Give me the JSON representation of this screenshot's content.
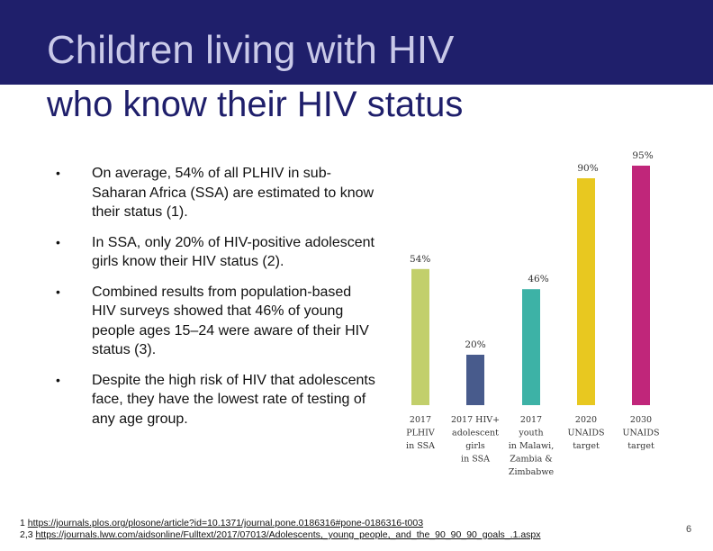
{
  "slide": {
    "title": "Children living with HIV",
    "subtitle": "who know their HIV status",
    "page_number": "6"
  },
  "bullets": [
    "On average, 54% of all PLHIV in sub-Saharan Africa (SSA) are estimated to know their status (1).",
    "In SSA, only 20% of HIV-positive adolescent girls know their HIV status (2).",
    "Combined results from population-based HIV surveys showed that 46% of young people ages 15–24 were aware of their HIV status (3).",
    "Despite the high risk of HIV that adolescents face, they have the lowest rate of testing of any age group."
  ],
  "footer": {
    "ref1_prefix": "1 ",
    "ref1_link": "https://journals.plos.org/plosone/article?id=10.1371/journal.pone.0186316#pone-0186316-t003",
    "ref2_prefix": "2,3  ",
    "ref2_link": "https://journals.lww.com/aidsonline/Fulltext/2017/07013/Adolescents,_young_people,_and_the_90_90_90_goals_.1.aspx"
  },
  "colors": {
    "header": "#1f1f6b",
    "title_text": "#c9c9e8",
    "subtitle_text": "#1f1f6b"
  },
  "chart_data": {
    "type": "bar",
    "categories": [
      [
        "2017",
        "PLHIV",
        "in SSA"
      ],
      [
        "2017   HIV+",
        "adolescent",
        "girls",
        "in SSA"
      ],
      [
        "2017",
        "youth",
        "in Malawi,",
        "Zambia &",
        "Zimbabwe"
      ],
      [
        "2020",
        "UNAIDS",
        "target"
      ],
      [
        "2030",
        "UNAIDS",
        "target"
      ]
    ],
    "values": [
      54,
      20,
      46,
      90,
      95
    ],
    "data_labels": [
      "54%",
      "20%",
      "46%",
      "90%",
      "95%"
    ],
    "colors": [
      "#c2cf6b",
      "#485b8c",
      "#3db2a6",
      "#e8c820",
      "#c0267a"
    ],
    "ylim": [
      0,
      100
    ],
    "grid": false,
    "legend": "none"
  }
}
